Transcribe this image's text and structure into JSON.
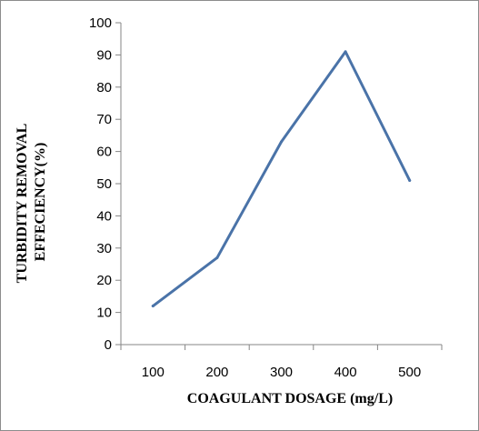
{
  "chart_data": {
    "type": "line",
    "title": "",
    "xlabel": "COAGULANT DOSAGE (mg/L)",
    "ylabel_lines": [
      "TURBIDITY  REMOVAL",
      "EFFECIENCY(%)"
    ],
    "x": [
      100,
      200,
      300,
      400,
      500
    ],
    "series": [
      {
        "values": [
          12,
          27,
          63,
          91,
          51
        ],
        "color": "#4a73a8"
      }
    ],
    "ylim": [
      0,
      100
    ],
    "yticks": [
      0,
      10,
      20,
      30,
      40,
      50,
      60,
      70,
      80,
      90,
      100
    ],
    "grid": false,
    "legend": "none",
    "axis_color": "#868686"
  }
}
